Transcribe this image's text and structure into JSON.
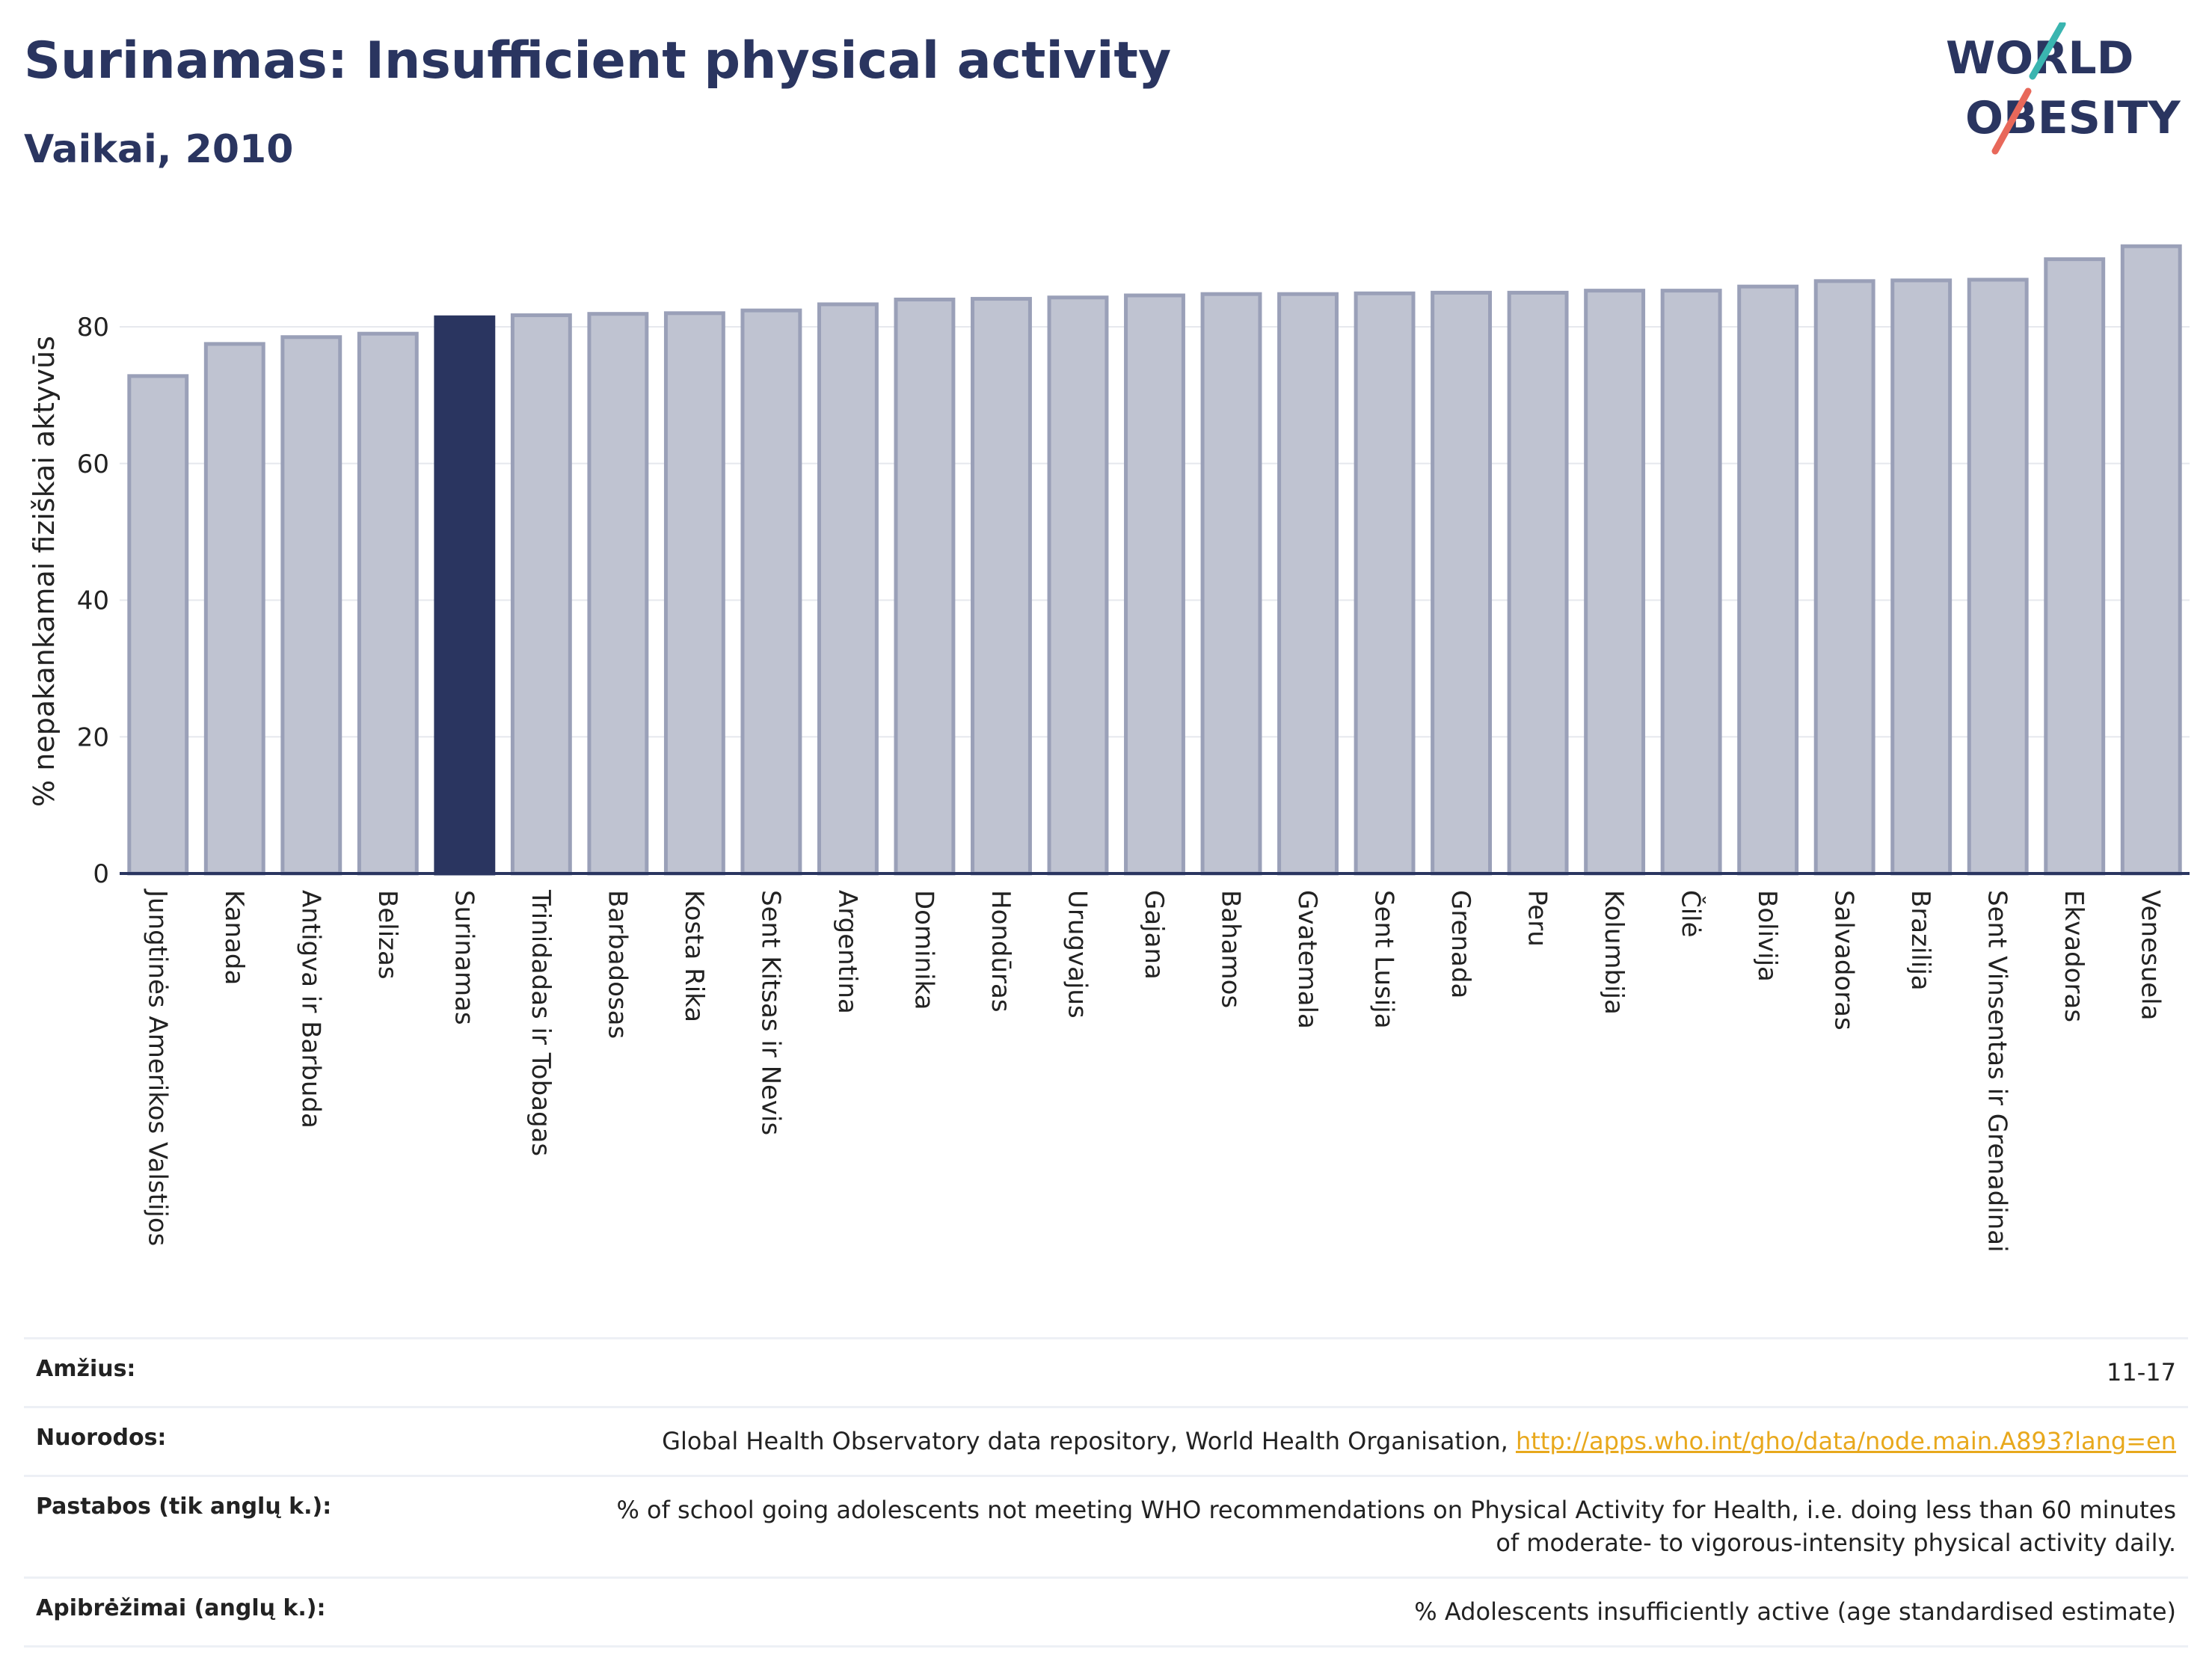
{
  "header": {
    "title": "Surinamas: Insufficient physical activity",
    "subtitle": "Vaikai, 2010"
  },
  "logo": {
    "line1": "WORLD",
    "line2": "OBESITY",
    "accent_teal": "#3ab5b0",
    "accent_red": "#e8685a",
    "color": "#2a3560"
  },
  "colors": {
    "bar": "#bfc3d1",
    "bar_border": "#9aa0b8",
    "highlight": "#2a3560",
    "axis": "#2a3560",
    "grid": "#e6e8ee"
  },
  "chart_data": {
    "type": "bar",
    "ylabel": "% nepakankamai fiziškai aktyvūs",
    "ylim": [
      0,
      95
    ],
    "yticks": [
      0,
      20,
      40,
      60,
      80
    ],
    "highlight": "Surinamas",
    "categories": [
      "Jungtinės Amerikos Valstijos",
      "Kanada",
      "Antigva ir Barbuda",
      "Belizas",
      "Surinamas",
      "Trinidadas ir Tobagas",
      "Barbadosas",
      "Kosta Rika",
      "Sent Kitsas ir Nevis",
      "Argentina",
      "Dominika",
      "Hondūras",
      "Urugvajus",
      "Gajana",
      "Bahamos",
      "Gvatemala",
      "Sent Lusija",
      "Grenada",
      "Peru",
      "Kolumbija",
      "Čilė",
      "Bolivija",
      "Salvadoras",
      "Brazilija",
      "Sent Vinsentas ir Grenadinai",
      "Ekvadoras",
      "Venesuela"
    ],
    "values": [
      72.8,
      77.5,
      78.5,
      79.0,
      81.4,
      81.7,
      81.9,
      82.0,
      82.4,
      83.3,
      84.0,
      84.1,
      84.3,
      84.6,
      84.8,
      84.8,
      84.9,
      85.0,
      85.0,
      85.3,
      85.3,
      85.9,
      86.7,
      86.8,
      86.9,
      89.9,
      91.8
    ]
  },
  "meta": {
    "age_label": "Amžius:",
    "age_value": "11-17",
    "refs_label": "Nuorodos:",
    "refs_text": "Global Health Observatory data repository, World Health Organisation, ",
    "refs_link": "http://apps.who.int/gho/data/node.main.A893?lang=en",
    "notes_label": "Pastabos (tik anglų k.):",
    "notes_value": "% of school going adolescents not meeting WHO recommendations on Physical Activity for Health, i.e. doing less than 60 minutes of moderate- to vigorous-intensity physical activity daily.",
    "defs_label": "Apibrėžimai (anglų k.):",
    "defs_value": "% Adolescents insufficiently active (age standardised estimate)"
  }
}
